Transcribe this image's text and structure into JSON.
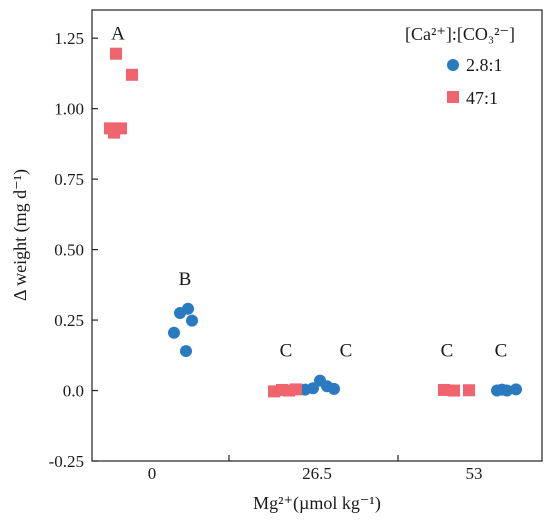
{
  "chart_data": {
    "type": "scatter",
    "title": "",
    "xlabel": "Mg²⁺(µmol kg⁻¹)",
    "ylabel": "Δ weight (mg d⁻¹)",
    "ylim": [
      -0.25,
      1.35
    ],
    "yticks": [
      "-0.25",
      "0.0",
      "0.25",
      "0.50",
      "0.75",
      "1.00",
      "1.25"
    ],
    "ytick_values": [
      -0.25,
      0,
      0.25,
      0.5,
      0.75,
      1.0,
      1.25
    ],
    "categories": [
      "0",
      "26.5",
      "53"
    ],
    "grid": false,
    "legend": {
      "title": "[Ca²⁺]:[CO₃²⁻]",
      "placement": "top-right",
      "entries": [
        "2.8:1",
        "47:1"
      ]
    },
    "series": [
      {
        "name": "2.8:1",
        "color": "#2a7ac0",
        "marker": "circle",
        "points": [
          {
            "category": "0",
            "y": 0.205
          },
          {
            "category": "0",
            "y": 0.275
          },
          {
            "category": "0",
            "y": 0.29
          },
          {
            "category": "0",
            "y": 0.248
          },
          {
            "category": "0",
            "y": 0.14
          },
          {
            "category": "26.5",
            "y": 0.003
          },
          {
            "category": "26.5",
            "y": 0.008
          },
          {
            "category": "26.5",
            "y": 0.035
          },
          {
            "category": "26.5",
            "y": 0.015
          },
          {
            "category": "26.5",
            "y": 0.006
          },
          {
            "category": "53",
            "y": 0.0
          },
          {
            "category": "53",
            "y": 0.003
          },
          {
            "category": "53",
            "y": 0.0
          },
          {
            "category": "53",
            "y": 0.004
          }
        ]
      },
      {
        "name": "47:1",
        "color": "#f0646e",
        "marker": "square",
        "points": [
          {
            "category": "0",
            "y": 0.93
          },
          {
            "category": "0",
            "y": 0.915
          },
          {
            "category": "0",
            "y": 1.195
          },
          {
            "category": "0",
            "y": 0.93
          },
          {
            "category": "0",
            "y": 1.12
          },
          {
            "category": "26.5",
            "y": -0.003
          },
          {
            "category": "26.5",
            "y": 0.002
          },
          {
            "category": "26.5",
            "y": 0.0
          },
          {
            "category": "26.5",
            "y": 0.004
          },
          {
            "category": "53",
            "y": 0.002
          },
          {
            "category": "53",
            "y": 0.0
          },
          {
            "category": "53",
            "y": 0.001
          }
        ]
      }
    ],
    "annotations": [
      {
        "text": "A",
        "category": "0",
        "y": 1.27
      },
      {
        "text": "B",
        "category": "0",
        "y": 0.4
      },
      {
        "text": "C",
        "category": "26.5",
        "y": 0.145
      },
      {
        "text": "C",
        "category": "26.5",
        "y": 0.145
      },
      {
        "text": "C",
        "category": "53",
        "y": 0.145
      },
      {
        "text": "C",
        "category": "53",
        "y": 0.145
      }
    ]
  }
}
